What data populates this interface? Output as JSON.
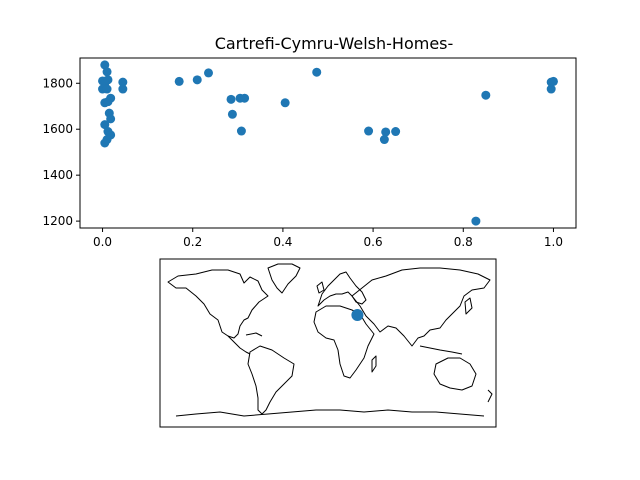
{
  "chart_data": [
    {
      "type": "scatter",
      "title": "Cartrefi-Cymru-Welsh-Homes-",
      "xlabel": "",
      "ylabel": "",
      "xlim": [
        -0.05,
        1.05
      ],
      "ylim": [
        1170,
        1910
      ],
      "xticks": [
        0.0,
        0.2,
        0.4,
        0.6,
        0.8,
        1.0
      ],
      "xtick_labels": [
        "0.0",
        "0.2",
        "0.4",
        "0.6",
        "0.8",
        "1.0"
      ],
      "yticks": [
        1200,
        1400,
        1600,
        1800
      ],
      "ytick_labels": [
        "1200",
        "1400",
        "1600",
        "1800"
      ],
      "grid": false,
      "marker_color": "#1f77b4",
      "points": [
        {
          "x": 0.005,
          "y": 1880
        },
        {
          "x": 0.01,
          "y": 1850
        },
        {
          "x": 0.0,
          "y": 1810
        },
        {
          "x": 0.005,
          "y": 1800
        },
        {
          "x": 0.012,
          "y": 1815
        },
        {
          "x": 0.0,
          "y": 1775
        },
        {
          "x": 0.01,
          "y": 1775
        },
        {
          "x": 0.005,
          "y": 1715
        },
        {
          "x": 0.012,
          "y": 1720
        },
        {
          "x": 0.018,
          "y": 1735
        },
        {
          "x": 0.015,
          "y": 1670
        },
        {
          "x": 0.018,
          "y": 1645
        },
        {
          "x": 0.005,
          "y": 1620
        },
        {
          "x": 0.012,
          "y": 1590
        },
        {
          "x": 0.018,
          "y": 1575
        },
        {
          "x": 0.01,
          "y": 1555
        },
        {
          "x": 0.005,
          "y": 1540
        },
        {
          "x": 0.045,
          "y": 1805
        },
        {
          "x": 0.045,
          "y": 1775
        },
        {
          "x": 0.17,
          "y": 1808
        },
        {
          "x": 0.21,
          "y": 1815
        },
        {
          "x": 0.235,
          "y": 1845
        },
        {
          "x": 0.285,
          "y": 1730
        },
        {
          "x": 0.288,
          "y": 1665
        },
        {
          "x": 0.305,
          "y": 1735
        },
        {
          "x": 0.315,
          "y": 1735
        },
        {
          "x": 0.308,
          "y": 1592
        },
        {
          "x": 0.405,
          "y": 1715
        },
        {
          "x": 0.475,
          "y": 1848
        },
        {
          "x": 0.59,
          "y": 1592
        },
        {
          "x": 0.625,
          "y": 1555
        },
        {
          "x": 0.628,
          "y": 1588
        },
        {
          "x": 0.65,
          "y": 1590
        },
        {
          "x": 0.828,
          "y": 1200
        },
        {
          "x": 0.85,
          "y": 1748
        },
        {
          "x": 0.995,
          "y": 1775
        },
        {
          "x": 0.995,
          "y": 1805
        },
        {
          "x": 1.0,
          "y": 1808
        }
      ]
    },
    {
      "type": "map",
      "projection": "equirectangular",
      "lon_range": [
        -180,
        180
      ],
      "lat_range": [
        -90,
        90
      ],
      "coastline_color": "#000000",
      "marker_color": "#1f77b4",
      "points": [
        {
          "lon": 31.5,
          "lat": 30.0
        }
      ]
    }
  ]
}
